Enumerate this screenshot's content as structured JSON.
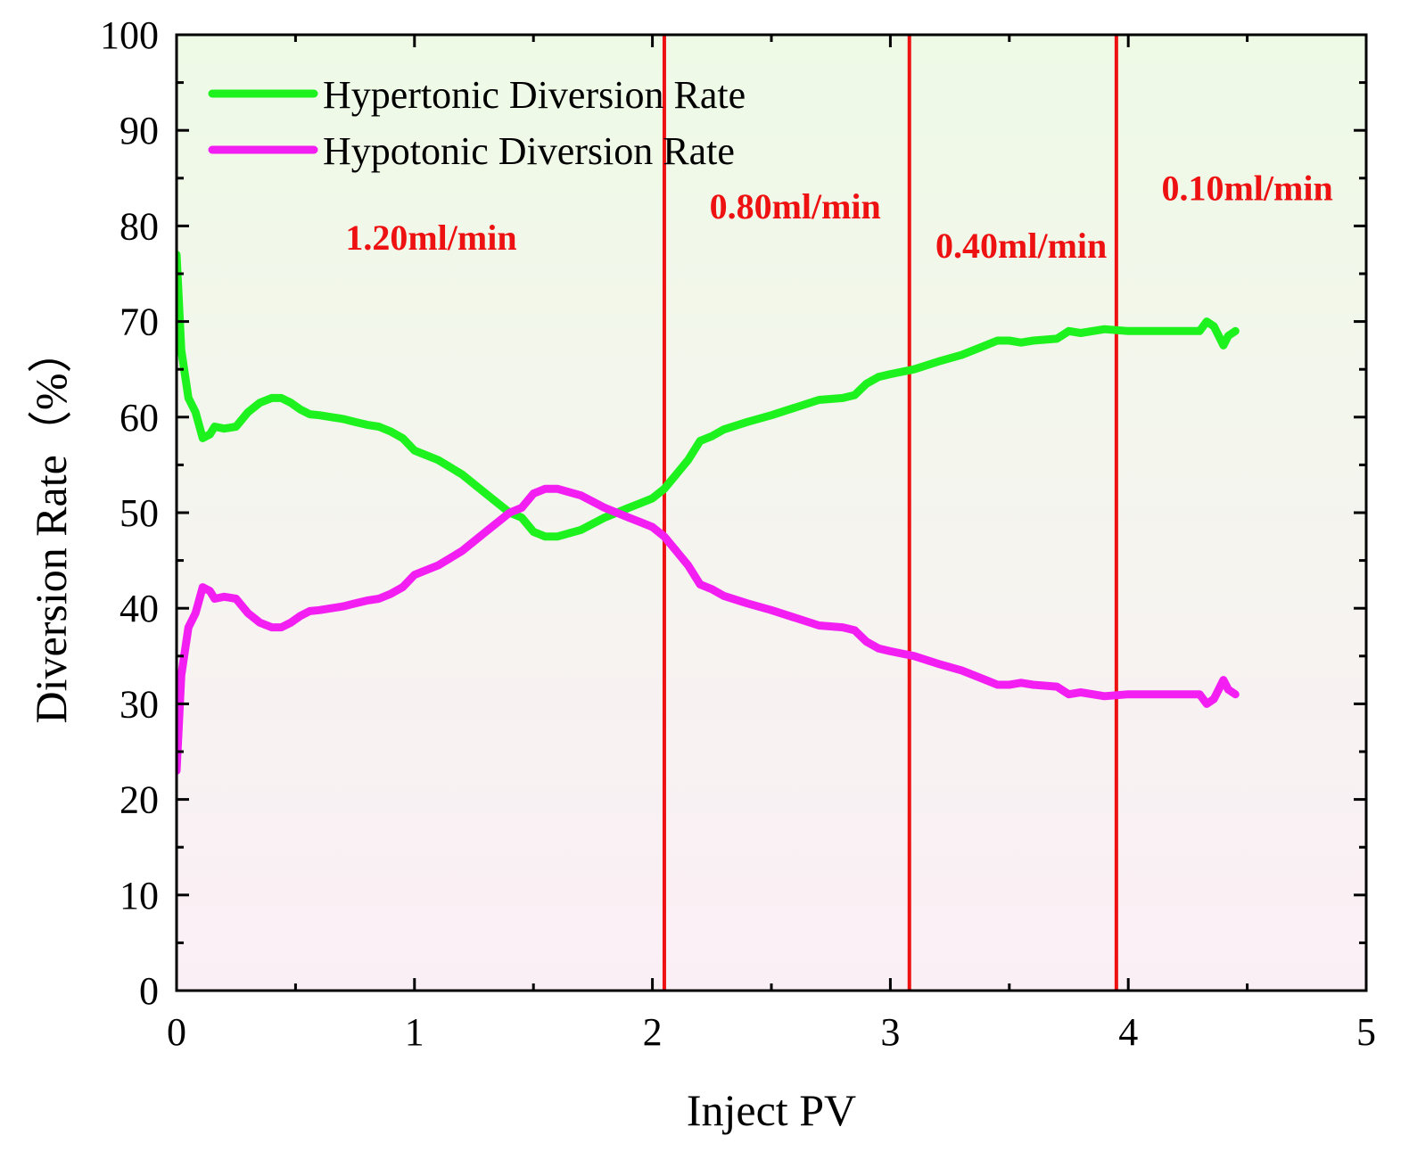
{
  "chart_data": {
    "type": "line",
    "title": "",
    "xlabel": "Inject PV",
    "ylabel": "Diversion Rate（%）",
    "xlim": [
      0,
      5
    ],
    "ylim": [
      0,
      100
    ],
    "xticks": [
      0,
      1,
      2,
      3,
      4,
      5
    ],
    "yticks": [
      0,
      10,
      20,
      30,
      40,
      50,
      60,
      70,
      80,
      90,
      100
    ],
    "grid": false,
    "legend_position": "top-left",
    "background_gradient": [
      "#eefae6",
      "#fbeff6"
    ],
    "series": [
      {
        "name": "Hypertonic Diversion Rate",
        "color": "#1ef21e",
        "x": [
          0.0,
          0.02,
          0.05,
          0.08,
          0.11,
          0.14,
          0.16,
          0.2,
          0.25,
          0.3,
          0.35,
          0.4,
          0.44,
          0.48,
          0.52,
          0.56,
          0.6,
          0.65,
          0.7,
          0.75,
          0.8,
          0.85,
          0.9,
          0.95,
          1.0,
          1.1,
          1.2,
          1.3,
          1.4,
          1.45,
          1.5,
          1.55,
          1.6,
          1.7,
          1.8,
          1.9,
          1.95,
          2.0,
          2.05,
          2.1,
          2.15,
          2.2,
          2.25,
          2.3,
          2.4,
          2.5,
          2.6,
          2.7,
          2.8,
          2.85,
          2.9,
          2.95,
          3.0,
          3.1,
          3.2,
          3.3,
          3.4,
          3.45,
          3.5,
          3.55,
          3.6,
          3.7,
          3.75,
          3.8,
          3.9,
          4.0,
          4.1,
          4.2,
          4.3,
          4.33,
          4.36,
          4.38,
          4.4,
          4.42,
          4.45
        ],
        "values": [
          77.0,
          67.0,
          62.0,
          60.5,
          57.8,
          58.2,
          59.0,
          58.8,
          59.0,
          60.5,
          61.5,
          62.0,
          62.0,
          61.5,
          60.8,
          60.3,
          60.2,
          60.0,
          59.8,
          59.5,
          59.2,
          59.0,
          58.5,
          57.8,
          56.5,
          55.5,
          54.0,
          52.0,
          50.0,
          49.5,
          48.0,
          47.5,
          47.5,
          48.2,
          49.5,
          50.5,
          51.0,
          51.5,
          52.5,
          54.0,
          55.5,
          57.5,
          58.0,
          58.7,
          59.5,
          60.2,
          61.0,
          61.8,
          62.0,
          62.3,
          63.5,
          64.2,
          64.5,
          65.0,
          65.8,
          66.5,
          67.5,
          68.0,
          68.0,
          67.8,
          68.0,
          68.2,
          69.0,
          68.8,
          69.2,
          69.0,
          69.0,
          69.0,
          69.0,
          70.0,
          69.5,
          68.5,
          67.5,
          68.5,
          69.0
        ]
      },
      {
        "name": "Hypotonic Diversion Rate",
        "color": "#f21ef2",
        "x": [
          0.0,
          0.02,
          0.05,
          0.08,
          0.11,
          0.14,
          0.16,
          0.2,
          0.25,
          0.3,
          0.35,
          0.4,
          0.44,
          0.48,
          0.52,
          0.56,
          0.6,
          0.65,
          0.7,
          0.75,
          0.8,
          0.85,
          0.9,
          0.95,
          1.0,
          1.1,
          1.2,
          1.3,
          1.4,
          1.45,
          1.5,
          1.55,
          1.6,
          1.7,
          1.8,
          1.9,
          1.95,
          2.0,
          2.05,
          2.1,
          2.15,
          2.2,
          2.25,
          2.3,
          2.4,
          2.5,
          2.6,
          2.7,
          2.8,
          2.85,
          2.9,
          2.95,
          3.0,
          3.1,
          3.2,
          3.3,
          3.4,
          3.45,
          3.5,
          3.55,
          3.6,
          3.7,
          3.75,
          3.8,
          3.9,
          4.0,
          4.1,
          4.2,
          4.3,
          4.33,
          4.36,
          4.38,
          4.4,
          4.42,
          4.45
        ],
        "values": [
          23.0,
          33.0,
          38.0,
          39.5,
          42.2,
          41.8,
          41.0,
          41.2,
          41.0,
          39.5,
          38.5,
          38.0,
          38.0,
          38.5,
          39.2,
          39.7,
          39.8,
          40.0,
          40.2,
          40.5,
          40.8,
          41.0,
          41.5,
          42.2,
          43.5,
          44.5,
          46.0,
          48.0,
          50.0,
          50.5,
          52.0,
          52.5,
          52.5,
          51.8,
          50.5,
          49.5,
          49.0,
          48.5,
          47.5,
          46.0,
          44.5,
          42.5,
          42.0,
          41.3,
          40.5,
          39.8,
          39.0,
          38.2,
          38.0,
          37.7,
          36.5,
          35.8,
          35.5,
          35.0,
          34.2,
          33.5,
          32.5,
          32.0,
          32.0,
          32.2,
          32.0,
          31.8,
          31.0,
          31.2,
          30.8,
          31.0,
          31.0,
          31.0,
          31.0,
          30.0,
          30.5,
          31.5,
          32.5,
          31.5,
          31.0
        ]
      }
    ],
    "vlines": {
      "color": "#ee1111",
      "x": [
        2.05,
        3.08,
        3.95
      ]
    },
    "annotations": [
      {
        "text": "1.20ml/min",
        "x": 1.07,
        "y": 77.5
      },
      {
        "text": "0.80ml/min",
        "x": 2.6,
        "y": 80.8
      },
      {
        "text": "0.40ml/min",
        "x": 3.55,
        "y": 76.7
      },
      {
        "text": "0.10ml/min",
        "x": 4.5,
        "y": 82.7
      }
    ]
  }
}
